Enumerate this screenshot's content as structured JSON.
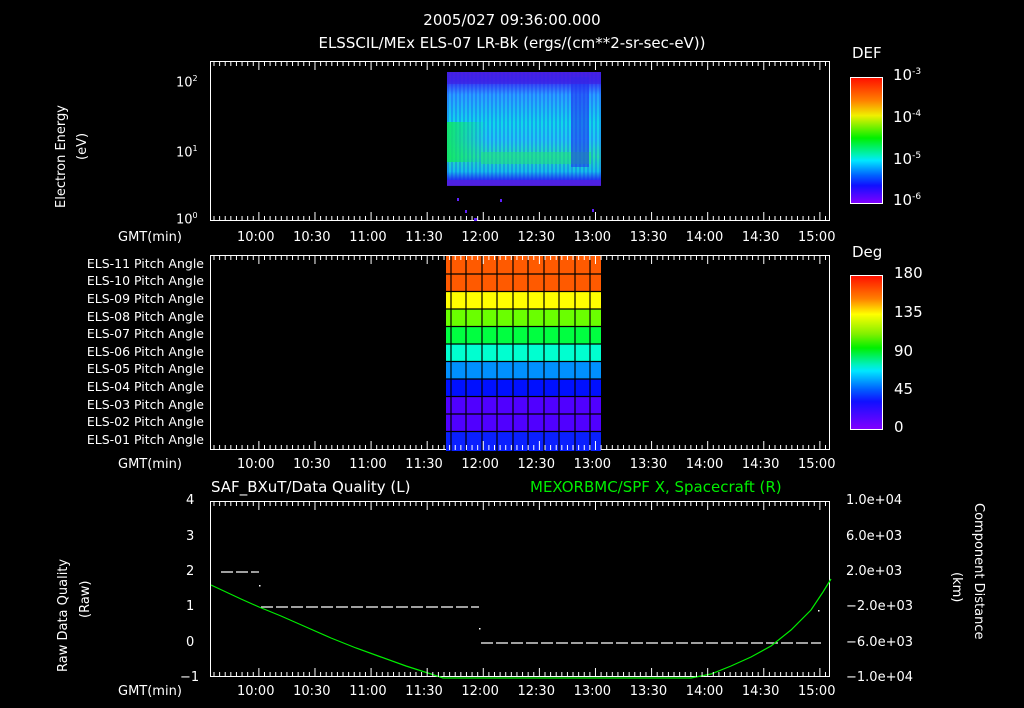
{
  "header": {
    "time": "2005/027 09:36:00.000",
    "subtitle": "ELSSCIL/MEx ELS-07 LR-Bk  (ergs/(cm**2-sr-sec-eV))"
  },
  "xaxis": {
    "label": "GMT(min)",
    "ticks": [
      "10:00",
      "10:30",
      "11:00",
      "11:30",
      "12:00",
      "12:30",
      "13:00",
      "13:30",
      "14:00",
      "14:30",
      "15:00"
    ]
  },
  "panel1": {
    "ylabel_line1": "Electron Energy",
    "ylabel_line2": "(eV)",
    "yticks": [
      "10",
      "10",
      "10"
    ],
    "yexp": [
      "0",
      "1",
      "2"
    ],
    "colorbar": {
      "title": "DEF",
      "ticks": [
        "10",
        "10",
        "10",
        "10"
      ],
      "exps": [
        "-3",
        "-4",
        "-5",
        "-6"
      ]
    }
  },
  "panel2": {
    "channels": [
      "ELS-11 Pitch Angle",
      "ELS-10 Pitch Angle",
      "ELS-09 Pitch Angle",
      "ELS-08 Pitch Angle",
      "ELS-07 Pitch Angle",
      "ELS-06 Pitch Angle",
      "ELS-05 Pitch Angle",
      "ELS-04 Pitch Angle",
      "ELS-03 Pitch Angle",
      "ELS-02 Pitch Angle",
      "ELS-01 Pitch Angle"
    ],
    "colorbar": {
      "title": "Deg",
      "ticks": [
        "180",
        "135",
        "90",
        "45",
        "0"
      ]
    }
  },
  "panel3": {
    "left_title": "SAF_BXuT/Data Quality (L)",
    "right_title": "MEXORBMC/SPF X, Spacecraft (R)",
    "ylabel_line1": "Raw Data Quality",
    "ylabel_line2": "(Raw)",
    "yticks_left": [
      "4",
      "3",
      "2",
      "1",
      "0",
      "−1"
    ],
    "yticks_right": [
      "1.0e+04",
      "6.0e+03",
      "2.0e+03",
      "−2.0e+03",
      "−6.0e+03",
      "−1.0e+04"
    ],
    "ylabel_right_line1": "Component Distance",
    "ylabel_right_line2": "(km)",
    "colors": {
      "quality": "#ffffff",
      "distance": "#00ee00"
    }
  },
  "chart_data": [
    {
      "type": "heatmap",
      "title": "ELSSCIL/MEx ELS-07 LR-Bk (ergs/(cm**2-sr-sec-eV))",
      "xlabel": "GMT(min)",
      "ylabel": "Electron Energy (eV)",
      "yscale": "log",
      "ylim": [
        1,
        150
      ],
      "xlim": [
        "09:36",
        "15:08"
      ],
      "data_extent_x": [
        "11:42",
        "13:06"
      ],
      "data_extent_y_eV": [
        3.5,
        150
      ],
      "colorbar": {
        "label": "DEF",
        "scale": "log",
        "range": [
          1e-06,
          0.001
        ]
      },
      "notes": "Enhanced flux (green, ~1e-4) band near 5-20 eV early in interval (~11:42-11:50) and a low-energy band near 5 eV extending to ~12:55; higher energies mostly ~1e-5."
    },
    {
      "type": "heatmap",
      "title": "ELS Pitch Angle",
      "xlabel": "GMT(min)",
      "categories": [
        "ELS-11",
        "ELS-10",
        "ELS-09",
        "ELS-08",
        "ELS-07",
        "ELS-06",
        "ELS-05",
        "ELS-04",
        "ELS-03",
        "ELS-02",
        "ELS-01"
      ],
      "values_deg": [
        165,
        165,
        140,
        120,
        105,
        80,
        60,
        35,
        20,
        20,
        30
      ],
      "data_extent_x": [
        "11:42",
        "13:06"
      ],
      "colorbar": {
        "label": "Deg",
        "range": [
          0,
          180
        ],
        "ticks": [
          0,
          45,
          90,
          135,
          180
        ]
      }
    },
    {
      "type": "line",
      "title": "SAF_BXuT/Data Quality (L) & MEXORBMC/SPF X, Spacecraft (R)",
      "xlabel": "GMT(min)",
      "ylabel": "Raw Data Quality (Raw)",
      "ylabel_right": "Component Distance (km)",
      "ylim": [
        -1,
        4
      ],
      "ylim_right": [
        -10000,
        10000
      ],
      "series": [
        {
          "name": "Data Quality (L)",
          "axis": "left",
          "style": "dashed-steps",
          "segments": [
            {
              "x": [
                "09:40",
                "09:55"
              ],
              "y": 2
            },
            {
              "x": [
                "10:05",
                "12:00"
              ],
              "y": 1
            },
            {
              "x": [
                "12:00",
                "15:00"
              ],
              "y": 0
            }
          ]
        },
        {
          "name": "SPF X, Spacecraft (R)",
          "axis": "right",
          "x": [
            "09:36",
            "10:00",
            "10:30",
            "11:00",
            "11:30",
            "11:50",
            "13:50",
            "14:00",
            "14:30",
            "15:00",
            "15:05"
          ],
          "y": [
            1900,
            0,
            -3700,
            -7000,
            -9500,
            -10000,
            -10000,
            -9300,
            -6000,
            -800,
            1600
          ]
        }
      ]
    }
  ]
}
